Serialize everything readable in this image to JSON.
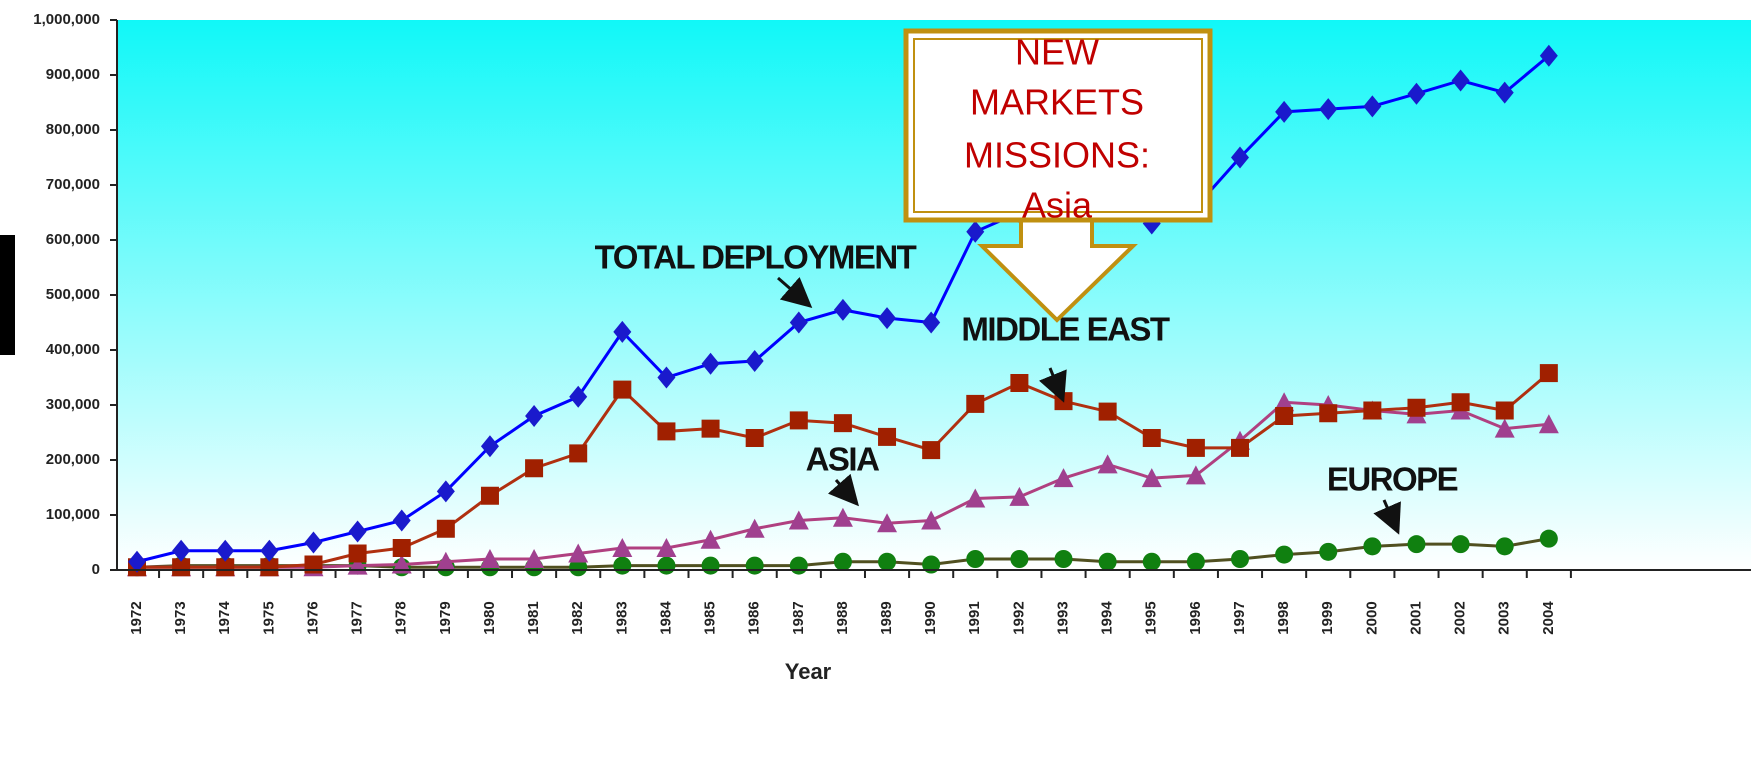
{
  "chart_data": {
    "type": "line",
    "xlabel": "Year",
    "categories": [
      "1972",
      "1973",
      "1974",
      "1975",
      "1976",
      "1977",
      "1978",
      "1979",
      "1980",
      "1981",
      "1982",
      "1983",
      "1984",
      "1985",
      "1986",
      "1987",
      "1988",
      "1989",
      "1990",
      "1991",
      "1992",
      "1993",
      "1994",
      "1995",
      "1996",
      "1997",
      "1998",
      "1999",
      "2000",
      "2001",
      "2002",
      "2003",
      "2004"
    ],
    "series": [
      {
        "name": "TOTAL DEPLOYMENT",
        "color": "#0000ff",
        "marker_color": "#1a1acc",
        "marker": "diamond",
        "values": [
          15000,
          35000,
          35000,
          35000,
          50000,
          70000,
          90000,
          143000,
          225000,
          280000,
          315000,
          433000,
          350000,
          375000,
          380000,
          450000,
          473000,
          458000,
          450000,
          615000,
          650000,
          670000,
          680000,
          630000,
          660000,
          750000,
          833000,
          838000,
          843000,
          866000,
          890000,
          868000,
          935000
        ]
      },
      {
        "name": "MIDDLE EAST",
        "color": "#b03010",
        "marker_color": "#a02000",
        "marker": "square",
        "values": [
          5000,
          5000,
          5000,
          5000,
          10000,
          30000,
          40000,
          75000,
          135000,
          185000,
          212000,
          328000,
          252000,
          257000,
          240000,
          272000,
          267000,
          242000,
          218000,
          302000,
          340000,
          307000,
          288000,
          240000,
          222000,
          222000,
          280000,
          285000,
          290000,
          295000,
          305000,
          290000,
          358000
        ]
      },
      {
        "name": "ASIA",
        "color": "#b04080",
        "marker_color": "#a0408f",
        "marker": "triangle",
        "values": [
          5000,
          5000,
          5000,
          5000,
          5000,
          8000,
          10000,
          15000,
          20000,
          20000,
          30000,
          40000,
          40000,
          55000,
          75000,
          90000,
          95000,
          85000,
          90000,
          130000,
          133000,
          167000,
          192000,
          167000,
          172000,
          235000,
          305000,
          300000,
          290000,
          283000,
          290000,
          257000,
          265000
        ]
      },
      {
        "name": "EUROPE",
        "color": "#505020",
        "marker_color": "#108010",
        "marker": "circle",
        "values": [
          5000,
          8000,
          8000,
          8000,
          8000,
          8000,
          5000,
          5000,
          5000,
          5000,
          5000,
          8000,
          8000,
          8000,
          8000,
          8000,
          15000,
          15000,
          10000,
          20000,
          20000,
          20000,
          15000,
          15000,
          15000,
          20000,
          28000,
          33000,
          43000,
          47000,
          47000,
          43000,
          57000
        ]
      }
    ],
    "ylim": [
      0,
      1000000
    ],
    "yticks": [
      0,
      {
        "value": 100000,
        "label": "100,000"
      },
      {
        "value": 200000,
        "label": "200,000"
      },
      {
        "value": 300000,
        "label": "300,000"
      },
      {
        "value": 400000,
        "label": "400,000"
      },
      {
        "value": 500000,
        "label": "500,000"
      },
      {
        "value": 600000,
        "label": "600,000"
      },
      {
        "value": 700000,
        "label": "700,000"
      },
      {
        "value": 800000,
        "label": "800,000"
      },
      {
        "value": 900000,
        "label": "900,000"
      },
      {
        "value": 1000000,
        "label": "1,000,000"
      }
    ],
    "callout": [
      "NEW",
      "MARKETS",
      "MISSIONS:",
      "Asia"
    ]
  }
}
